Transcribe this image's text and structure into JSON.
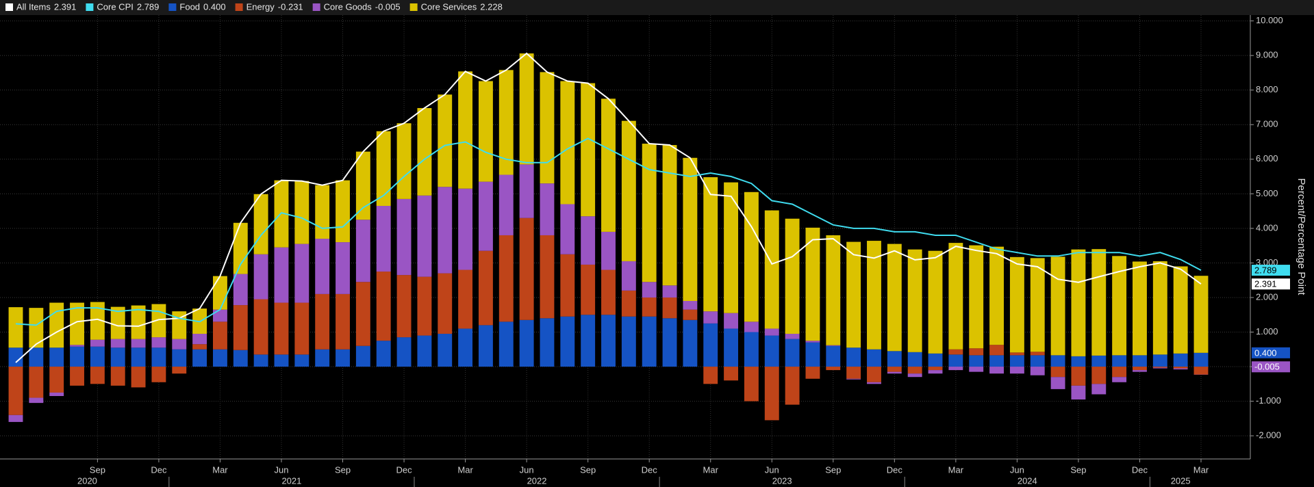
{
  "chart_data": {
    "type": "bar",
    "y_label": "Percent/Percentage Point",
    "x": [
      "2020-05",
      "2020-06",
      "2020-07",
      "2020-08",
      "2020-09",
      "2020-10",
      "2020-11",
      "2020-12",
      "2021-01",
      "2021-02",
      "2021-03",
      "2021-04",
      "2021-05",
      "2021-06",
      "2021-07",
      "2021-08",
      "2021-09",
      "2021-10",
      "2021-11",
      "2021-12",
      "2022-01",
      "2022-02",
      "2022-03",
      "2022-04",
      "2022-05",
      "2022-06",
      "2022-07",
      "2022-08",
      "2022-09",
      "2022-10",
      "2022-11",
      "2022-12",
      "2023-01",
      "2023-02",
      "2023-03",
      "2023-04",
      "2023-05",
      "2023-06",
      "2023-07",
      "2023-08",
      "2023-09",
      "2023-10",
      "2023-11",
      "2023-12",
      "2024-01",
      "2024-02",
      "2024-03",
      "2024-04",
      "2024-05",
      "2024-06",
      "2024-07",
      "2024-08",
      "2024-09",
      "2024-10",
      "2024-11",
      "2024-12",
      "2025-01",
      "2025-02",
      "2025-03"
    ],
    "xticks": [
      {
        "value": "2020-09",
        "label": "Sep"
      },
      {
        "value": "2020-12",
        "label": "Dec"
      },
      {
        "value": "2021-03",
        "label": "Mar"
      },
      {
        "value": "2021-06",
        "label": "Jun"
      },
      {
        "value": "2021-09",
        "label": "Sep"
      },
      {
        "value": "2021-12",
        "label": "Dec"
      },
      {
        "value": "2022-03",
        "label": "Mar"
      },
      {
        "value": "2022-06",
        "label": "Jun"
      },
      {
        "value": "2022-09",
        "label": "Sep"
      },
      {
        "value": "2022-12",
        "label": "Dec"
      },
      {
        "value": "2023-03",
        "label": "Mar"
      },
      {
        "value": "2023-06",
        "label": "Jun"
      },
      {
        "value": "2023-09",
        "label": "Sep"
      },
      {
        "value": "2023-12",
        "label": "Dec"
      },
      {
        "value": "2024-03",
        "label": "Mar"
      },
      {
        "value": "2024-06",
        "label": "Jun"
      },
      {
        "value": "2024-09",
        "label": "Sep"
      },
      {
        "value": "2024-12",
        "label": "Dec"
      },
      {
        "value": "2025-03",
        "label": "Mar"
      }
    ],
    "year_ticks": [
      "2020",
      "2021",
      "2022",
      "2023",
      "2024",
      "2025"
    ],
    "ylim": [
      -2.67,
      10.17
    ],
    "yticks": [
      {
        "value": -2,
        "label": "-2.000"
      },
      {
        "value": -1,
        "label": "-1.000"
      },
      {
        "value": 0,
        "label": "0.000"
      },
      {
        "value": 1,
        "label": "1.000"
      },
      {
        "value": 2,
        "label": "2.000"
      },
      {
        "value": 3,
        "label": "3.000"
      },
      {
        "value": 4,
        "label": "4.000"
      },
      {
        "value": 5,
        "label": "5.000"
      },
      {
        "value": 6,
        "label": "6.000"
      },
      {
        "value": 7,
        "label": "7.000"
      },
      {
        "value": 8,
        "label": "8.000"
      },
      {
        "value": 9,
        "label": "9.000"
      },
      {
        "value": 10,
        "label": "10.000"
      }
    ],
    "grid": true,
    "series": [
      {
        "name": "All Items",
        "legend_value": "2.391",
        "type": "line",
        "color": "#ffffff",
        "axis_tag": true,
        "values": [
          0.12,
          0.65,
          1.0,
          1.3,
          1.37,
          1.18,
          1.17,
          1.36,
          1.4,
          1.68,
          2.62,
          4.16,
          4.99,
          5.39,
          5.37,
          5.25,
          5.39,
          6.22,
          6.81,
          7.04,
          7.48,
          7.87,
          8.54,
          8.26,
          8.58,
          9.06,
          8.52,
          8.26,
          8.2,
          7.75,
          7.11,
          6.45,
          6.41,
          6.04,
          4.98,
          4.93,
          4.05,
          2.97,
          3.18,
          3.67,
          3.7,
          3.24,
          3.14,
          3.35,
          3.09,
          3.15,
          3.48,
          3.36,
          3.27,
          2.97,
          2.89,
          2.53,
          2.44,
          2.6,
          2.75,
          2.89,
          3.0,
          2.82,
          2.391
        ]
      },
      {
        "name": "Core CPI",
        "legend_value": "2.789",
        "type": "line",
        "color": "#3fdcef",
        "axis_tag": true,
        "values": [
          1.24,
          1.2,
          1.6,
          1.7,
          1.7,
          1.6,
          1.65,
          1.6,
          1.4,
          1.3,
          1.65,
          2.96,
          3.8,
          4.45,
          4.3,
          4.0,
          4.04,
          4.6,
          4.95,
          5.5,
          6.0,
          6.4,
          6.5,
          6.2,
          6.0,
          5.9,
          5.9,
          6.3,
          6.6,
          6.3,
          6.0,
          5.7,
          5.6,
          5.5,
          5.6,
          5.5,
          5.3,
          4.8,
          4.7,
          4.4,
          4.1,
          4.0,
          4.0,
          3.9,
          3.9,
          3.8,
          3.8,
          3.6,
          3.4,
          3.3,
          3.2,
          3.2,
          3.3,
          3.3,
          3.3,
          3.2,
          3.3,
          3.1,
          2.789
        ]
      },
      {
        "name": "Food",
        "legend_value": "0.400",
        "type": "bar",
        "color": "#1553c4",
        "axis_tag": true,
        "values": [
          0.55,
          0.55,
          0.55,
          0.58,
          0.58,
          0.55,
          0.55,
          0.55,
          0.5,
          0.5,
          0.5,
          0.48,
          0.35,
          0.35,
          0.35,
          0.5,
          0.5,
          0.6,
          0.75,
          0.85,
          0.9,
          0.95,
          1.1,
          1.2,
          1.3,
          1.35,
          1.4,
          1.45,
          1.5,
          1.5,
          1.45,
          1.45,
          1.4,
          1.35,
          1.25,
          1.1,
          1.0,
          0.9,
          0.8,
          0.7,
          0.6,
          0.55,
          0.5,
          0.45,
          0.42,
          0.38,
          0.35,
          0.33,
          0.33,
          0.33,
          0.33,
          0.33,
          0.3,
          0.32,
          0.33,
          0.33,
          0.35,
          0.38,
          0.4
        ]
      },
      {
        "name": "Energy",
        "legend_value": "-0.231",
        "type": "bar",
        "color": "#bf4419",
        "axis_tag": false,
        "values": [
          -1.4,
          -0.9,
          -0.75,
          -0.55,
          -0.5,
          -0.55,
          -0.6,
          -0.45,
          -0.2,
          0.15,
          0.8,
          1.3,
          1.6,
          1.5,
          1.5,
          1.6,
          1.6,
          1.85,
          2.0,
          1.8,
          1.7,
          1.75,
          1.7,
          2.15,
          2.5,
          2.95,
          2.4,
          1.8,
          1.45,
          1.3,
          0.75,
          0.55,
          0.6,
          0.3,
          -0.5,
          -0.4,
          -1.0,
          -1.55,
          -1.1,
          -0.35,
          -0.1,
          -0.35,
          -0.45,
          -0.15,
          -0.2,
          -0.1,
          0.15,
          0.2,
          0.3,
          0.08,
          0.1,
          -0.3,
          -0.55,
          -0.5,
          -0.3,
          -0.1,
          -0.03,
          -0.05,
          -0.231
        ]
      },
      {
        "name": "Core Goods",
        "legend_value": "-0.005",
        "type": "bar",
        "color": "#9a55c4",
        "axis_tag": true,
        "values": [
          -0.2,
          -0.15,
          -0.1,
          0.05,
          0.2,
          0.25,
          0.25,
          0.3,
          0.3,
          0.3,
          0.35,
          0.9,
          1.3,
          1.6,
          1.7,
          1.6,
          1.5,
          1.8,
          1.9,
          2.2,
          2.35,
          2.5,
          2.35,
          2.0,
          1.75,
          1.55,
          1.5,
          1.45,
          1.4,
          1.1,
          0.85,
          0.45,
          0.35,
          0.25,
          0.35,
          0.45,
          0.3,
          0.2,
          0.15,
          0.05,
          0.02,
          -0.02,
          -0.05,
          -0.05,
          -0.1,
          -0.1,
          -0.1,
          -0.15,
          -0.2,
          -0.2,
          -0.25,
          -0.35,
          -0.4,
          -0.3,
          -0.15,
          -0.05,
          -0.02,
          -0.03,
          -0.005
        ]
      },
      {
        "name": "Core Services",
        "legend_value": "2.228",
        "type": "bar",
        "color": "#dbc200",
        "axis_tag": false,
        "values": [
          1.17,
          1.15,
          1.3,
          1.22,
          1.09,
          0.93,
          0.97,
          0.96,
          0.8,
          0.73,
          0.97,
          1.48,
          1.74,
          1.94,
          1.82,
          1.55,
          1.79,
          1.97,
          2.16,
          2.19,
          2.53,
          2.67,
          3.39,
          2.91,
          3.03,
          3.21,
          3.22,
          3.56,
          3.85,
          3.85,
          4.06,
          4.0,
          4.06,
          4.14,
          3.88,
          3.78,
          3.75,
          3.42,
          3.33,
          3.27,
          3.18,
          3.06,
          3.14,
          3.1,
          2.97,
          2.97,
          3.08,
          2.98,
          2.84,
          2.76,
          2.71,
          2.85,
          3.09,
          3.08,
          2.87,
          2.71,
          2.7,
          2.52,
          2.228
        ]
      }
    ]
  }
}
